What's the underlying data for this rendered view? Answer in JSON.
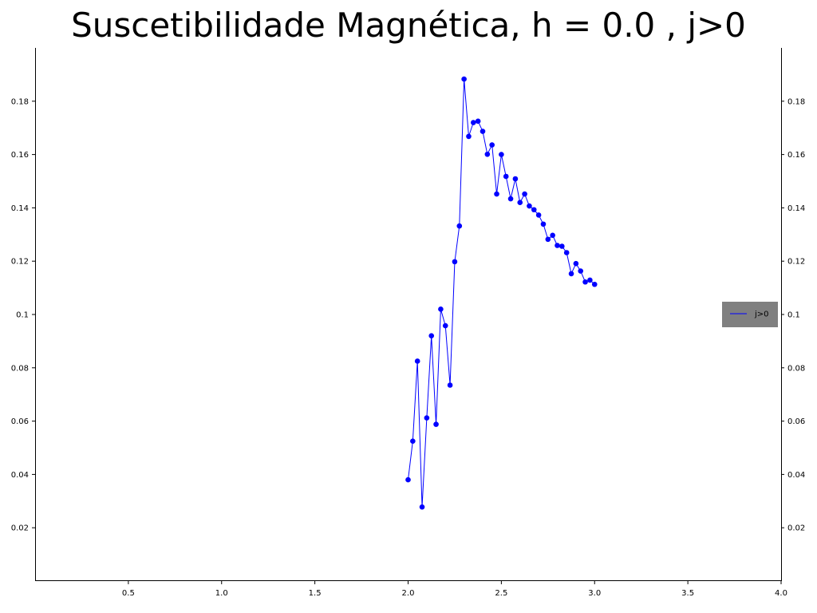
{
  "chart_data": {
    "type": "line",
    "title": "Suscetibilidade Magnética, h = 0.0 , j>0",
    "xlabel": "",
    "ylabel": "",
    "xlim": [
      0,
      4.0
    ],
    "ylim": [
      0,
      0.2
    ],
    "x_ticks": [
      0.5,
      1.0,
      1.5,
      2.0,
      2.5,
      3.0,
      3.5,
      4.0
    ],
    "x_tick_labels": [
      "0.5",
      "1.0",
      "1.5",
      "2.0",
      "2.5",
      "3.0",
      "3.5",
      "4.0"
    ],
    "y_ticks": [
      0.02,
      0.04,
      0.06,
      0.08,
      0.1,
      0.12,
      0.14,
      0.16,
      0.18
    ],
    "y_tick_labels": [
      "0.02",
      "0.04",
      "0.06",
      "0.08",
      "0.1",
      "0.12",
      "0.14",
      "0.16",
      "0.18"
    ],
    "legend_position": "right",
    "grid": false,
    "colors": {
      "series": "#0000ff",
      "legend_bg": "#808080"
    },
    "series": [
      {
        "name": "j>0",
        "x": [
          2.0,
          2.025,
          2.05,
          2.075,
          2.1,
          2.125,
          2.15,
          2.175,
          2.2,
          2.225,
          2.25,
          2.275,
          2.3,
          2.325,
          2.35,
          2.375,
          2.4,
          2.425,
          2.45,
          2.475,
          2.5,
          2.525,
          2.55,
          2.575,
          2.6,
          2.625,
          2.65,
          2.675,
          2.7,
          2.725,
          2.75,
          2.775,
          2.8,
          2.825,
          2.85,
          2.875,
          2.9,
          2.925,
          2.95,
          2.975,
          3.0
        ],
        "y": [
          0.038,
          0.0525,
          0.0825,
          0.0278,
          0.0612,
          0.092,
          0.0588,
          0.102,
          0.0958,
          0.0735,
          0.1198,
          0.1332,
          0.1883,
          0.1668,
          0.172,
          0.1725,
          0.1687,
          0.1601,
          0.1636,
          0.1452,
          0.16,
          0.1518,
          0.1434,
          0.1509,
          0.142,
          0.1452,
          0.1407,
          0.1393,
          0.1373,
          0.1339,
          0.1282,
          0.1297,
          0.1259,
          0.1256,
          0.1232,
          0.1153,
          0.1191,
          0.1163,
          0.1122,
          0.1129,
          0.1113
        ]
      }
    ]
  }
}
